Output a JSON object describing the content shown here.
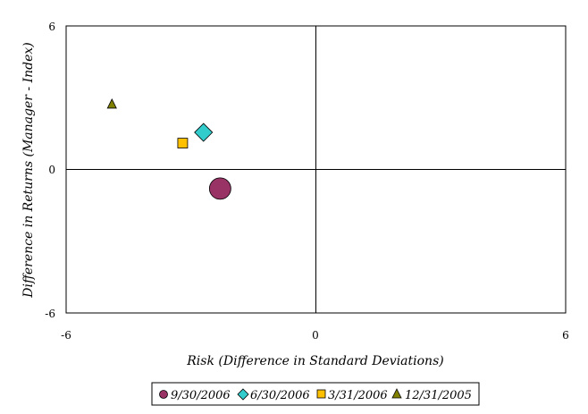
{
  "chart_data": {
    "type": "scatter",
    "title": "",
    "xlabel": "Risk (Difference in Standard Deviations)",
    "ylabel": "Difference in Returns (Manager - Index)",
    "xlim": [
      -6,
      6
    ],
    "ylim": [
      -6,
      6
    ],
    "x_ticks": [
      "-6",
      "0",
      "6"
    ],
    "y_ticks": [
      "6",
      "0",
      "-6"
    ],
    "grid": false,
    "legend_position": "bottom",
    "series": [
      {
        "name": "9/30/2006",
        "marker": "circle",
        "color": "#993366",
        "x": [
          -2.3
        ],
        "y": [
          -0.8
        ]
      },
      {
        "name": "6/30/2006",
        "marker": "diamond",
        "color": "#33CCCC",
        "x": [
          -2.7
        ],
        "y": [
          1.55
        ]
      },
      {
        "name": "3/31/2006",
        "marker": "square",
        "color": "#FFC000",
        "x": [
          -3.2
        ],
        "y": [
          1.1
        ]
      },
      {
        "name": "12/31/2005",
        "marker": "triangle",
        "color": "#808000",
        "x": [
          -4.9
        ],
        "y": [
          2.75
        ]
      }
    ]
  }
}
